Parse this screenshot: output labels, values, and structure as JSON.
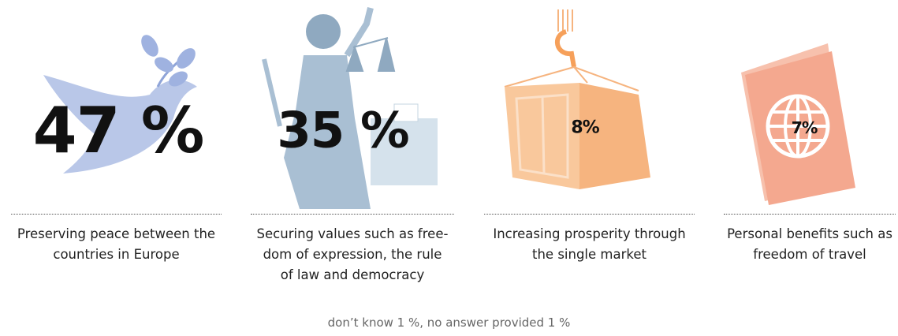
{
  "chart_data": {
    "type": "infographic",
    "categories": [
      "Preserving peace between the\ncountries in Europe",
      "Securing values such as free-\ndom of expression, the rule\nof law and democracy",
      "Increasing prosperity through\nthe single market",
      "Personal benefits such as\nfreedom of travel"
    ],
    "values": [
      47,
      35,
      8,
      7
    ],
    "value_labels": [
      "47 %",
      "35 %",
      "8%",
      "7%"
    ],
    "colors": [
      "#b9c7e8",
      "#a9bfd3",
      "#f6b47f",
      "#f4a88f"
    ],
    "note": "don’t know 1 %, no answer provided 1 %"
  }
}
